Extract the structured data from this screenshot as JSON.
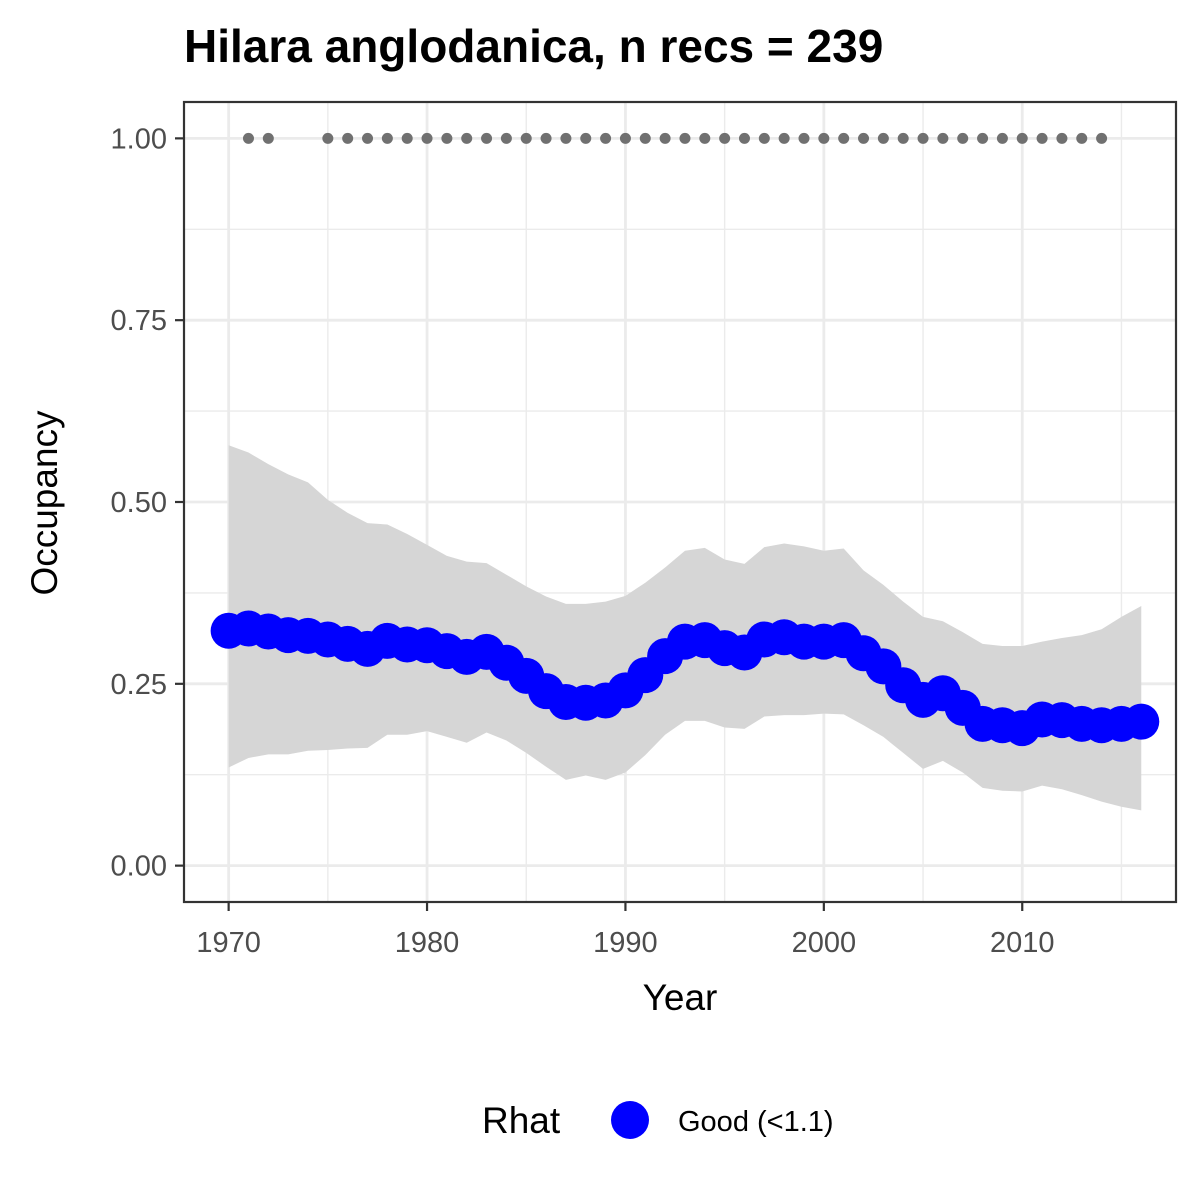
{
  "chart_data": {
    "type": "line",
    "title": "Hilara anglodanica, n recs = 239",
    "xlabel": "Year",
    "ylabel": "Occupancy",
    "xlim": [
      1967.75,
      2017.75
    ],
    "ylim": [
      -0.05,
      1.05
    ],
    "x_ticks": [
      1970,
      1980,
      1990,
      2000,
      2010
    ],
    "x_tick_labels": [
      "1970",
      "1980",
      "1990",
      "2000",
      "2010"
    ],
    "y_ticks": [
      0,
      0.25,
      0.5,
      0.75,
      1.0
    ],
    "y_tick_labels": [
      "0.00",
      "0.25",
      "0.50",
      "0.75",
      "1.00"
    ],
    "grid": true,
    "legend_position": "bottom",
    "legend_title": "Rhat",
    "series": [
      {
        "name": "Good (<1.1)",
        "color": "#0000ff",
        "x": [
          1970,
          1971,
          1972,
          1973,
          1974,
          1975,
          1976,
          1977,
          1978,
          1979,
          1980,
          1981,
          1982,
          1983,
          1984,
          1985,
          1986,
          1987,
          1988,
          1989,
          1990,
          1991,
          1992,
          1993,
          1994,
          1995,
          1996,
          1997,
          1998,
          1999,
          2000,
          2001,
          2002,
          2003,
          2004,
          2005,
          2006,
          2007,
          2008,
          2009,
          2010,
          2011,
          2012,
          2013,
          2014,
          2015,
          2016
        ],
        "y": [
          0.323,
          0.326,
          0.322,
          0.317,
          0.316,
          0.311,
          0.305,
          0.298,
          0.309,
          0.304,
          0.303,
          0.295,
          0.287,
          0.294,
          0.279,
          0.261,
          0.24,
          0.225,
          0.224,
          0.227,
          0.241,
          0.262,
          0.288,
          0.308,
          0.31,
          0.299,
          0.293,
          0.311,
          0.314,
          0.308,
          0.308,
          0.31,
          0.292,
          0.274,
          0.248,
          0.228,
          0.237,
          0.217,
          0.195,
          0.193,
          0.189,
          0.201,
          0.2,
          0.195,
          0.193,
          0.195,
          0.198
        ],
        "lower": [
          0.135,
          0.148,
          0.153,
          0.153,
          0.158,
          0.159,
          0.161,
          0.162,
          0.18,
          0.18,
          0.185,
          0.177,
          0.169,
          0.183,
          0.172,
          0.155,
          0.136,
          0.118,
          0.124,
          0.118,
          0.128,
          0.152,
          0.18,
          0.199,
          0.199,
          0.19,
          0.188,
          0.205,
          0.207,
          0.207,
          0.209,
          0.208,
          0.193,
          0.177,
          0.155,
          0.133,
          0.144,
          0.128,
          0.107,
          0.103,
          0.102,
          0.11,
          0.105,
          0.097,
          0.088,
          0.081,
          0.076
        ],
        "upper": [
          0.578,
          0.568,
          0.552,
          0.538,
          0.527,
          0.503,
          0.485,
          0.471,
          0.469,
          0.456,
          0.441,
          0.426,
          0.418,
          0.416,
          0.4,
          0.384,
          0.37,
          0.36,
          0.36,
          0.363,
          0.371,
          0.389,
          0.41,
          0.433,
          0.437,
          0.421,
          0.415,
          0.438,
          0.443,
          0.439,
          0.433,
          0.436,
          0.406,
          0.386,
          0.363,
          0.342,
          0.336,
          0.321,
          0.305,
          0.302,
          0.302,
          0.308,
          0.313,
          0.317,
          0.325,
          0.342,
          0.357
        ]
      }
    ],
    "record_years": [
      1971,
      1972,
      1975,
      1976,
      1977,
      1978,
      1979,
      1980,
      1981,
      1982,
      1983,
      1984,
      1985,
      1986,
      1987,
      1988,
      1989,
      1990,
      1991,
      1992,
      1993,
      1994,
      1995,
      1996,
      1997,
      1998,
      1999,
      2000,
      2001,
      2002,
      2003,
      2004,
      2005,
      2006,
      2007,
      2008,
      2009,
      2010,
      2011,
      2012,
      2013,
      2014
    ],
    "record_y": 1.0,
    "colors": {
      "line": "#0000ff",
      "ribbon": "#d6d6d6",
      "records": "#707070",
      "grid": "#ebebeb",
      "panel_border": "#333333"
    }
  }
}
